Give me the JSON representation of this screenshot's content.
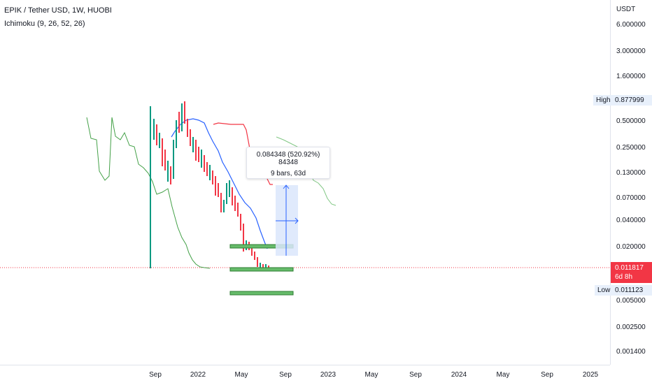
{
  "legend": {
    "title": "EPIK / Tether USD, 1W, HUOBI",
    "indicator": "Ichimoku (9, 26, 52, 26)"
  },
  "price_axis": {
    "unit": "USDT",
    "ticks": [
      "6.000000",
      "3.000000",
      "1.600000",
      "0.500000",
      "0.250000",
      "0.130000",
      "0.070000",
      "0.040000",
      "0.020000",
      "0.005000",
      "0.002500",
      "0.001400"
    ],
    "high_label": "High",
    "high_value": "0.877999",
    "low_label": "Low",
    "low_value": "0.011123",
    "last_price": "0.011817",
    "countdown": "6d 8h"
  },
  "time_axis": {
    "ticks": [
      "Sep",
      "2022",
      "May",
      "Sep",
      "2023",
      "May",
      "Sep",
      "2024",
      "May",
      "Sep",
      "2025"
    ]
  },
  "measure": {
    "line1": "0.084348 (520.92%) 84348",
    "line2": "9 bars, 63d"
  },
  "colors": {
    "up": "#089981",
    "down": "#f23645",
    "conversion_line": "#2962ff",
    "base_line": "#f23645",
    "lagging_span": "#43a047",
    "measure_fill": "#dbe6fb"
  }
}
